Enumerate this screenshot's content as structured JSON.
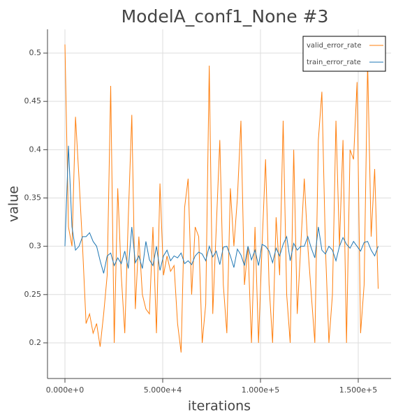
{
  "chart_data": {
    "type": "line",
    "title": "ModelA_conf1_None #3",
    "x_label": "iterations",
    "y_label": "value",
    "x": [
      0,
      1800,
      3600,
      5400,
      7200,
      9000,
      10800,
      12600,
      14400,
      16200,
      18000,
      19800,
      21600,
      23400,
      25200,
      27000,
      28800,
      30600,
      32400,
      34200,
      36000,
      37800,
      39600,
      41400,
      43200,
      45000,
      46800,
      48600,
      50400,
      52200,
      54000,
      55800,
      57600,
      59400,
      61200,
      63000,
      64800,
      66600,
      68400,
      70200,
      72000,
      73800,
      75600,
      77400,
      79200,
      81000,
      82800,
      84600,
      86400,
      88200,
      90000,
      91800,
      93600,
      95400,
      97200,
      99000,
      100800,
      102600,
      104400,
      106200,
      108000,
      109800,
      111600,
      113400,
      115200,
      117000,
      118800,
      120600,
      122400,
      124200,
      126000,
      127800,
      129600,
      131400,
      133200,
      135000,
      136800,
      138600,
      140400,
      142200,
      144000,
      145800,
      147600,
      149400,
      151200,
      153000,
      154800,
      156600,
      158400,
      160200
    ],
    "series": [
      {
        "name": "valid_error_rate",
        "color": "#ff7f0e",
        "values": [
          0.509,
          0.32,
          0.3,
          0.434,
          0.37,
          0.3,
          0.22,
          0.23,
          0.21,
          0.22,
          0.196,
          0.23,
          0.27,
          0.466,
          0.2,
          0.36,
          0.27,
          0.21,
          0.33,
          0.436,
          0.235,
          0.31,
          0.25,
          0.235,
          0.23,
          0.32,
          0.21,
          0.365,
          0.27,
          0.29,
          0.274,
          0.28,
          0.22,
          0.19,
          0.34,
          0.37,
          0.25,
          0.32,
          0.31,
          0.2,
          0.24,
          0.487,
          0.23,
          0.32,
          0.41,
          0.26,
          0.21,
          0.36,
          0.3,
          0.35,
          0.43,
          0.26,
          0.3,
          0.2,
          0.32,
          0.2,
          0.3,
          0.39,
          0.26,
          0.2,
          0.33,
          0.27,
          0.43,
          0.25,
          0.2,
          0.4,
          0.23,
          0.3,
          0.37,
          0.3,
          0.25,
          0.2,
          0.41,
          0.46,
          0.3,
          0.2,
          0.25,
          0.43,
          0.3,
          0.41,
          0.2,
          0.4,
          0.39,
          0.47,
          0.21,
          0.26,
          0.49,
          0.31,
          0.38,
          0.256
        ]
      },
      {
        "name": "train_error_rate",
        "color": "#1f77b4",
        "values": [
          0.3,
          0.404,
          0.32,
          0.296,
          0.3,
          0.31,
          0.31,
          0.314,
          0.305,
          0.3,
          0.285,
          0.272,
          0.29,
          0.293,
          0.28,
          0.288,
          0.282,
          0.295,
          0.277,
          0.32,
          0.283,
          0.29,
          0.277,
          0.305,
          0.286,
          0.28,
          0.3,
          0.275,
          0.29,
          0.296,
          0.285,
          0.29,
          0.288,
          0.293,
          0.282,
          0.285,
          0.281,
          0.29,
          0.294,
          0.292,
          0.285,
          0.3,
          0.289,
          0.295,
          0.281,
          0.299,
          0.3,
          0.29,
          0.278,
          0.297,
          0.291,
          0.28,
          0.3,
          0.286,
          0.296,
          0.28,
          0.302,
          0.3,
          0.295,
          0.283,
          0.298,
          0.29,
          0.302,
          0.31,
          0.285,
          0.303,
          0.296,
          0.3,
          0.3,
          0.31,
          0.298,
          0.288,
          0.32,
          0.296,
          0.292,
          0.3,
          0.296,
          0.285,
          0.3,
          0.309,
          0.302,
          0.298,
          0.305,
          0.3,
          0.295,
          0.304,
          0.305,
          0.296,
          0.29,
          0.3
        ]
      }
    ],
    "xlim": [
      -8929,
      166786
    ],
    "ylim": [
      0.1631,
      0.5246
    ],
    "xticks": [
      {
        "value": 0,
        "label": "0.000e+0"
      },
      {
        "value": 50000,
        "label": "5.000e+4"
      },
      {
        "value": 100000,
        "label": "1.000e+5"
      },
      {
        "value": 150000,
        "label": "1.500e+5"
      }
    ],
    "yticks": [
      0.2,
      0.25,
      0.3,
      0.35,
      0.4,
      0.45,
      0.5
    ],
    "grid": true,
    "legend": "top-right"
  }
}
